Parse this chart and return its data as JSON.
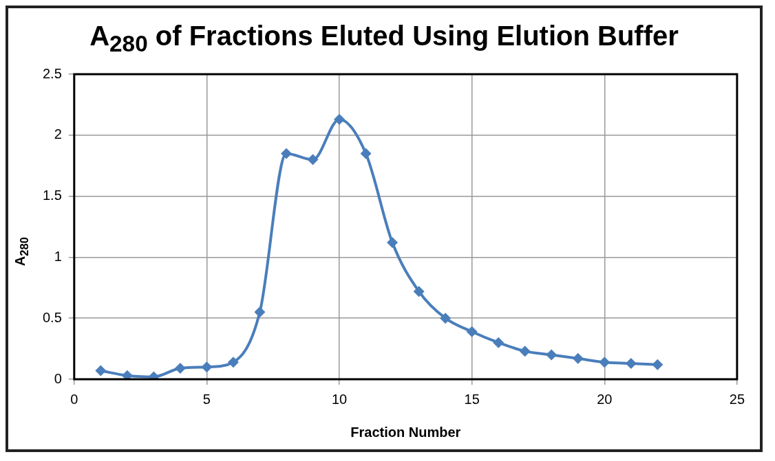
{
  "chart_data": {
    "type": "line",
    "title": "A$_{280}$ of Fractions Eluted Using Elution Buffer",
    "xlabel": "Fraction Number",
    "ylabel": "A$_{280}$",
    "x": [
      1,
      2,
      3,
      4,
      5,
      6,
      7,
      8,
      9,
      10,
      11,
      12,
      13,
      14,
      15,
      16,
      17,
      18,
      19,
      20,
      21,
      22
    ],
    "series": [
      {
        "color": "#4a7ebb",
        "values": [
          0.07,
          0.03,
          0.02,
          0.09,
          0.1,
          0.14,
          0.55,
          1.85,
          1.8,
          2.13,
          1.85,
          1.12,
          0.72,
          0.5,
          0.39,
          0.3,
          0.23,
          0.2,
          0.17,
          0.14,
          0.13,
          0.12
        ]
      }
    ],
    "xlim": [
      0,
      25
    ],
    "xticks": [
      0,
      5,
      10,
      15,
      20,
      25
    ],
    "ylim": [
      0,
      2.5
    ],
    "yticks": [
      0,
      0.5,
      1,
      1.5,
      2,
      2.5
    ],
    "grid": true,
    "legend": false,
    "marker": "diamond",
    "line_style": "solid"
  }
}
